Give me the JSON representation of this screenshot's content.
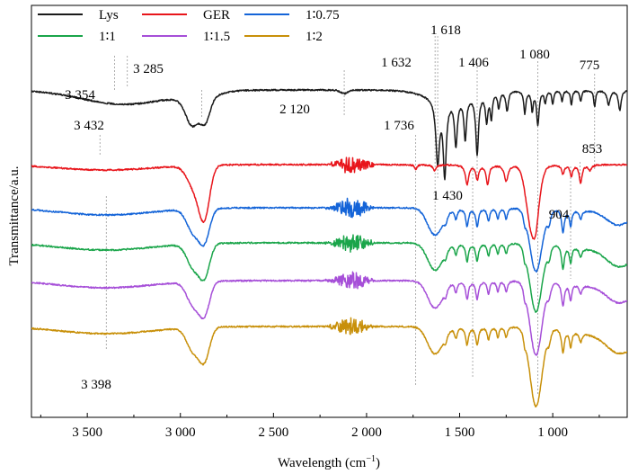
{
  "chart_data": {
    "type": "line",
    "xlabel": "Wavelength (cm",
    "xlabel_sup": "−1",
    "xlabel_close": ")",
    "ylabel": "Transmittance/a.u.",
    "x_reversed": true,
    "xlim": [
      3800,
      600
    ],
    "x_ticks": [
      3500,
      3000,
      2500,
      2000,
      1500,
      1000
    ],
    "x_tick_labels": [
      "3 500",
      "3 000",
      "2 500",
      "2 000",
      "1 500",
      "1 000"
    ],
    "legend_position": "top-left",
    "series": [
      {
        "name": "Lys",
        "color": "#1a1a1a",
        "offset": 0
      },
      {
        "name": "GER",
        "color": "#e8151b",
        "offset": 1
      },
      {
        "name": "1∶0.75",
        "color": "#1464d8",
        "offset": 2
      },
      {
        "name": "1∶1",
        "color": "#1aa54a",
        "offset": 3
      },
      {
        "name": "1∶1.5",
        "color": "#a64fd8",
        "offset": 4
      },
      {
        "name": "1∶2",
        "color": "#c8900a",
        "offset": 5
      }
    ],
    "annotations": [
      {
        "text": "3 354",
        "x": 3354
      },
      {
        "text": "3 285",
        "x": 3285
      },
      {
        "text": "2 120",
        "x": 2120
      },
      {
        "text": "1 632",
        "x": 1632
      },
      {
        "text": "1 618",
        "x": 1618
      },
      {
        "text": "1 406",
        "x": 1406
      },
      {
        "text": "1 080",
        "x": 1080
      },
      {
        "text": "775",
        "x": 775
      },
      {
        "text": "3 432",
        "x": 3432
      },
      {
        "text": "1 736",
        "x": 1736
      },
      {
        "text": "853",
        "x": 853
      },
      {
        "text": "1 430",
        "x": 1430
      },
      {
        "text": "904",
        "x": 904
      },
      {
        "text": "3 398",
        "x": 3398
      }
    ]
  }
}
